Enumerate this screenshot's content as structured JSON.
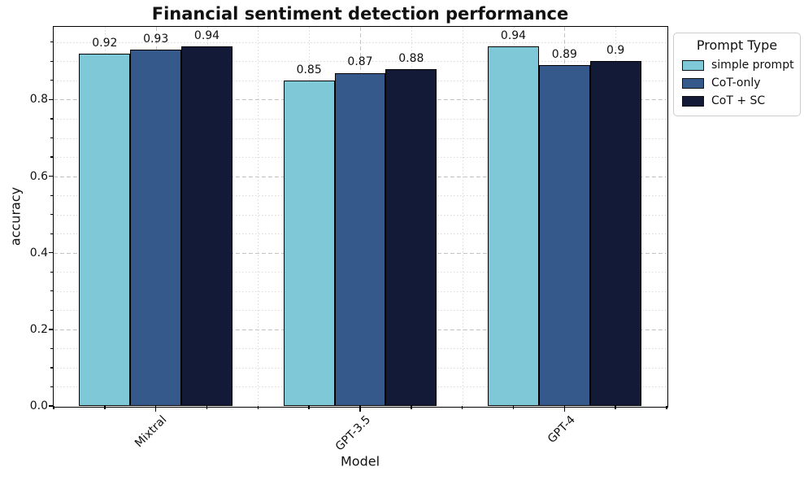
{
  "chart_data": {
    "type": "bar",
    "title": "Financial sentiment detection performance",
    "xlabel": "Model",
    "ylabel": "accuracy",
    "categories": [
      "Mixtral",
      "GPT-3.5",
      "GPT-4"
    ],
    "series": [
      {
        "name": "simple prompt",
        "color": "#7ec8d7",
        "values": [
          0.92,
          0.85,
          0.94
        ]
      },
      {
        "name": "CoT-only",
        "color": "#36598b",
        "values": [
          0.93,
          0.87,
          0.89
        ]
      },
      {
        "name": "CoT + SC",
        "color": "#131a38",
        "values": [
          0.94,
          0.88,
          0.9
        ]
      }
    ],
    "bar_value_labels": {
      "simple prompt": [
        "0.92",
        "0.85",
        "0.94"
      ],
      "CoT-only": [
        "0.93",
        "0.87",
        "0.89"
      ],
      "CoT + SC": [
        "0.94",
        "0.88",
        "0.9"
      ]
    },
    "ylim": [
      0,
      0.99
    ],
    "ytick_values": [
      0.0,
      0.2,
      0.4,
      0.6,
      0.8
    ],
    "ytick_labels": [
      "0.0",
      "0.2",
      "0.4",
      "0.6",
      "0.8"
    ],
    "y_minor_step": 0.05,
    "x_minor_step_units": 0.25,
    "legend": {
      "title": "Prompt Type",
      "position": "outside-upper-right"
    },
    "grid": {
      "major": "dashed",
      "minor": "dotted"
    },
    "bar_edge_color": "#000000"
  }
}
